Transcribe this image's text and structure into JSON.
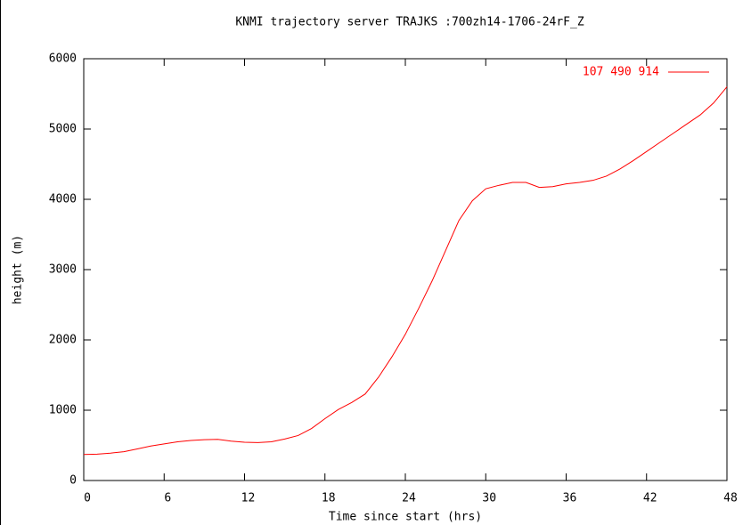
{
  "chart_data": {
    "type": "line",
    "title": "KNMI trajectory server TRAJKS :700zh14-1706-24rF_Z",
    "x_label": "Time since start (hrs)",
    "y_label": "height (m)",
    "x": [
      0,
      1,
      2,
      3,
      4,
      5,
      6,
      7,
      8,
      9,
      10,
      11,
      12,
      13,
      14,
      15,
      16,
      17,
      18,
      19,
      20,
      21,
      22,
      23,
      24,
      25,
      26,
      27,
      28,
      29,
      30,
      31,
      32,
      33,
      34,
      35,
      36,
      37,
      38,
      39,
      40,
      41,
      42,
      43,
      44,
      45,
      46,
      47,
      48
    ],
    "series": [
      {
        "name": "107 490 914",
        "color": "#ff0000",
        "values": [
          370,
          375,
          390,
          410,
          450,
          490,
          520,
          550,
          570,
          580,
          585,
          560,
          545,
          540,
          550,
          590,
          640,
          740,
          880,
          1010,
          1110,
          1230,
          1470,
          1760,
          2080,
          2450,
          2840,
          3270,
          3700,
          3980,
          4150,
          4200,
          4240,
          4240,
          4170,
          4180,
          4220,
          4240,
          4270,
          4330,
          4430,
          4550,
          4680,
          4810,
          4940,
          5070,
          5200,
          5370,
          5600
        ]
      }
    ],
    "xlim": [
      0,
      48
    ],
    "xticks": [
      0,
      6,
      12,
      18,
      24,
      30,
      36,
      42,
      48
    ],
    "ylim": [
      0,
      6000
    ],
    "yticks": [
      0,
      1000,
      2000,
      3000,
      4000,
      5000,
      6000
    ],
    "legend": "top-right"
  }
}
